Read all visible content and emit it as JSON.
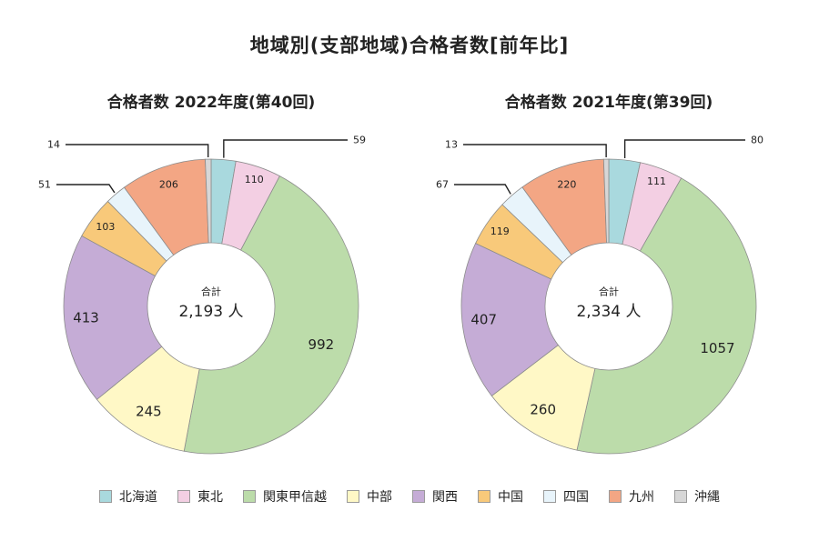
{
  "title": "地域別(支部地域)合格者数[前年比]",
  "legend": [
    {
      "name": "北海道",
      "color": "#a9d9de"
    },
    {
      "name": "東北",
      "color": "#f3cfe3"
    },
    {
      "name": "関東甲信越",
      "color": "#bcdcaa"
    },
    {
      "name": "中部",
      "color": "#fff8c6"
    },
    {
      "name": "関西",
      "color": "#c5acd6"
    },
    {
      "name": "中国",
      "color": "#f8c97a"
    },
    {
      "name": "四国",
      "color": "#e8f4fb"
    },
    {
      "name": "九州",
      "color": "#f3a684"
    },
    {
      "name": "沖縄",
      "color": "#d7d7d7"
    }
  ],
  "chart_data": [
    {
      "type": "pie",
      "title": "合格者数 2022年度(第40回)",
      "categories": [
        "北海道",
        "東北",
        "関東甲信越",
        "中部",
        "関西",
        "中国",
        "四国",
        "九州",
        "沖縄"
      ],
      "values": [
        59,
        110,
        992,
        245,
        413,
        103,
        51,
        206,
        14
      ],
      "value_labels": [
        "59",
        "110",
        "992",
        "245",
        "413",
        "103",
        "51",
        "206",
        "14"
      ],
      "center_label": "合計",
      "center_value": "2,193 人"
    },
    {
      "type": "pie",
      "title": "合格者数 2021年度(第39回)",
      "categories": [
        "北海道",
        "東北",
        "関東甲信越",
        "中部",
        "関西",
        "中国",
        "四国",
        "九州",
        "沖縄"
      ],
      "values": [
        80,
        111,
        1057,
        260,
        407,
        119,
        67,
        220,
        13
      ],
      "value_labels": [
        "80",
        "111",
        "1057",
        "260",
        "407",
        "119",
        "67",
        "220",
        "13"
      ],
      "center_label": "合計",
      "center_value": "2,334 人"
    }
  ]
}
